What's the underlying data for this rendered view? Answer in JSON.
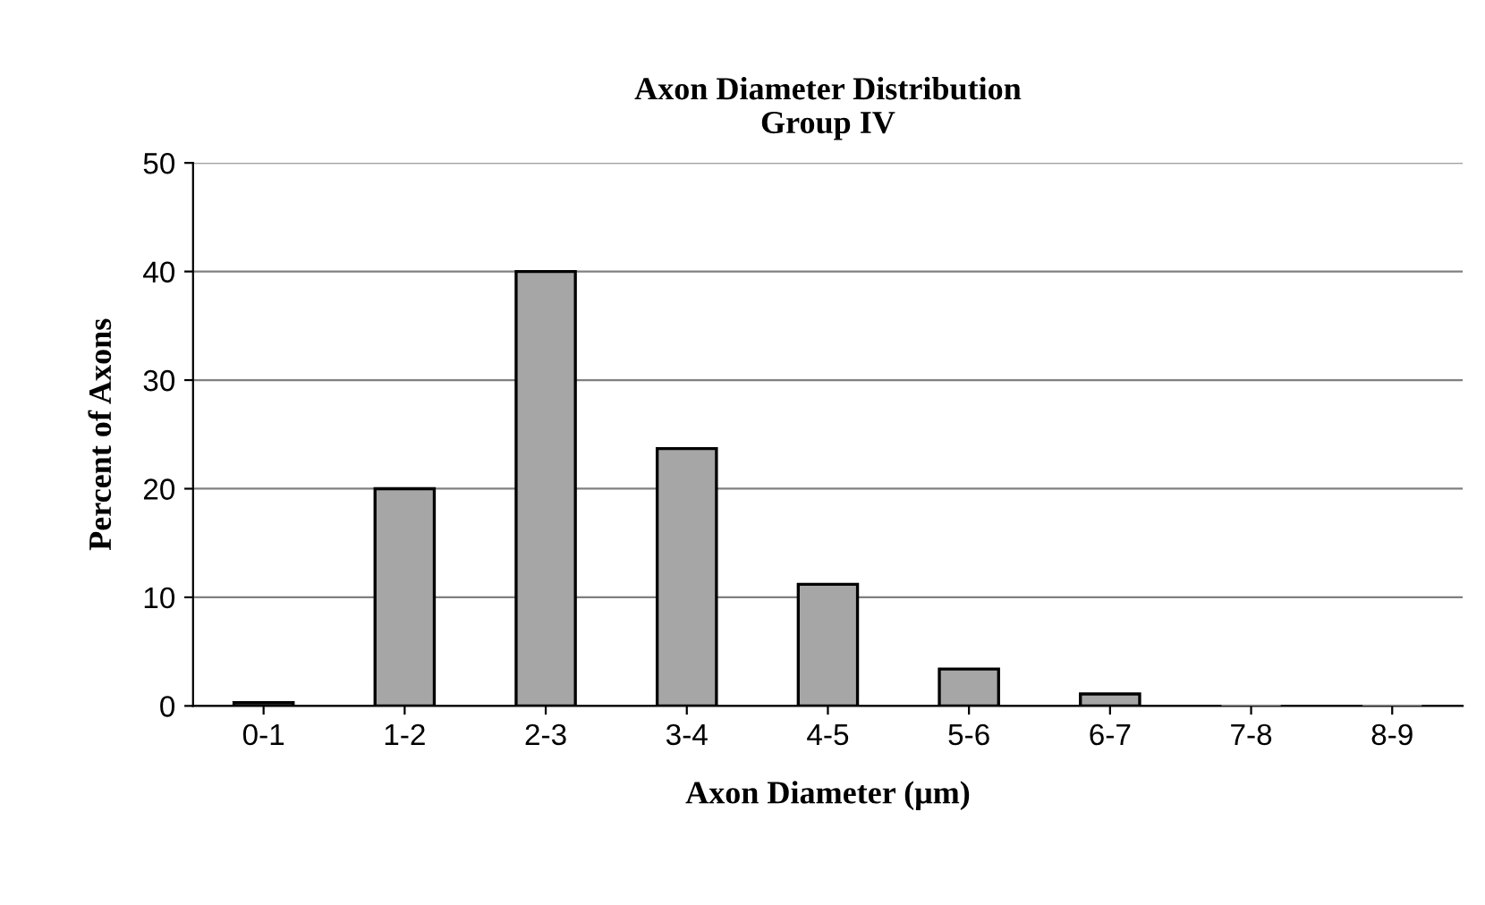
{
  "chart_data": {
    "type": "bar",
    "title": "Axon Diameter Distribution\nGroup IV",
    "xlabel": "Axon Diameter (μm)",
    "ylabel": "Percent of Axons",
    "categories": [
      "0-1",
      "1-2",
      "2-3",
      "3-4",
      "4-5",
      "5-6",
      "6-7",
      "7-8",
      "8-9"
    ],
    "values": [
      0.3,
      20,
      40,
      23.7,
      11.2,
      3.4,
      1.1,
      0,
      0
    ],
    "color": "#a6a6a6",
    "ylim": [
      0,
      50
    ],
    "yticks": [
      0,
      10,
      20,
      30,
      40,
      50
    ],
    "grid": "y",
    "legend": false
  }
}
